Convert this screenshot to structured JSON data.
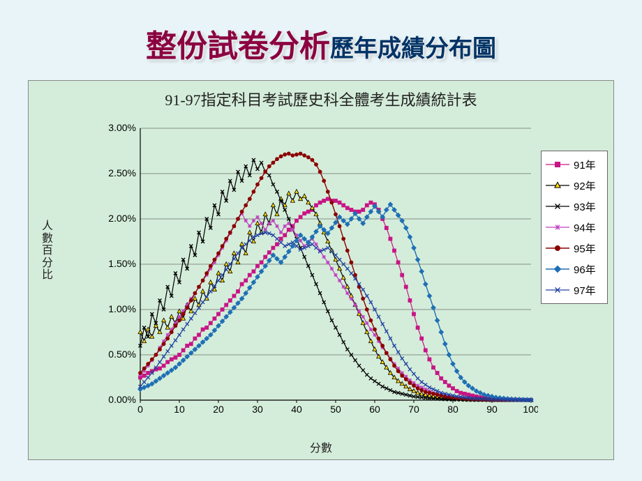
{
  "title": {
    "main": "整份試卷分析",
    "sub": "歷年成績分布圖"
  },
  "chart": {
    "type": "line",
    "title": "91-97指定科目考試歷史科全體考生成績統計表",
    "xlabel": "分數",
    "ylabel": "人數百分比",
    "background_color": "#d4edda",
    "page_background": "#e8f4f8",
    "grid_color": "#333333",
    "axis_color": "#000000",
    "title_fontsize": 22,
    "label_fontsize": 16,
    "tick_fontsize": 14,
    "xlim": [
      0,
      100
    ],
    "ylim": [
      0,
      3.0
    ],
    "xtick_step": 10,
    "ytick_step": 0.5,
    "ytick_format": "percent_2dec",
    "xticks": [
      0,
      10,
      20,
      30,
      40,
      50,
      60,
      70,
      80,
      90,
      100
    ],
    "yticks": [
      0,
      0.5,
      1.0,
      1.5,
      2.0,
      2.5,
      3.0
    ],
    "legend": {
      "position": "right",
      "bg": "#ffffff",
      "border": "#666666"
    },
    "series": [
      {
        "name": "91年",
        "color": "#c71585",
        "marker": "square",
        "line_width": 1.2,
        "marker_size": 5,
        "y": [
          0.25,
          0.27,
          0.3,
          0.32,
          0.34,
          0.35,
          0.38,
          0.42,
          0.45,
          0.47,
          0.5,
          0.55,
          0.6,
          0.62,
          0.68,
          0.72,
          0.78,
          0.8,
          0.85,
          0.9,
          0.95,
          1.0,
          1.05,
          1.1,
          1.15,
          1.2,
          1.28,
          1.32,
          1.38,
          1.42,
          1.48,
          1.52,
          1.58,
          1.63,
          1.68,
          1.72,
          1.78,
          1.82,
          1.88,
          1.92,
          1.98,
          2.02,
          2.06,
          2.08,
          2.1,
          2.15,
          2.18,
          2.2,
          2.22,
          2.2,
          2.2,
          2.18,
          2.15,
          2.12,
          2.1,
          2.08,
          2.08,
          2.1,
          2.15,
          2.18,
          2.16,
          2.1,
          2.0,
          1.9,
          1.78,
          1.65,
          1.52,
          1.38,
          1.25,
          1.1,
          0.95,
          0.8,
          0.68,
          0.55,
          0.45,
          0.36,
          0.3,
          0.24,
          0.2,
          0.16,
          0.13,
          0.1,
          0.08,
          0.07,
          0.06,
          0.05,
          0.04,
          0.03,
          0.025,
          0.02,
          0.018,
          0.015,
          0.012,
          0.01,
          0.008,
          0.006,
          0.005,
          0.004,
          0.003,
          0.002,
          0.002
        ]
      },
      {
        "name": "92年",
        "color": "#000000",
        "marker": "triangle",
        "fill": "#ffd800",
        "line_width": 1.2,
        "marker_size": 5,
        "y": [
          0.75,
          0.65,
          0.78,
          0.7,
          0.82,
          0.75,
          0.88,
          0.8,
          0.92,
          0.85,
          0.98,
          0.9,
          1.05,
          0.98,
          1.12,
          1.05,
          1.2,
          1.12,
          1.3,
          1.22,
          1.4,
          1.32,
          1.5,
          1.42,
          1.62,
          1.52,
          1.72,
          1.62,
          1.85,
          1.75,
          1.95,
          1.85,
          2.05,
          1.95,
          2.15,
          2.05,
          2.22,
          2.15,
          2.28,
          2.2,
          2.3,
          2.22,
          2.25,
          2.18,
          2.12,
          2.05,
          1.95,
          1.85,
          1.75,
          1.65,
          1.55,
          1.45,
          1.35,
          1.25,
          1.15,
          1.05,
          0.95,
          0.85,
          0.75,
          0.65,
          0.56,
          0.48,
          0.42,
          0.36,
          0.3,
          0.25,
          0.21,
          0.18,
          0.15,
          0.12,
          0.1,
          0.08,
          0.07,
          0.06,
          0.05,
          0.04,
          0.035,
          0.03,
          0.025,
          0.022,
          0.02,
          0.018,
          0.015,
          0.012,
          0.01,
          0.008,
          0.007,
          0.006,
          0.005,
          0.004,
          0.003,
          0.003,
          0.002,
          0.002,
          0.002,
          0.001,
          0.001,
          0.001,
          0.001,
          0.001,
          0.001
        ]
      },
      {
        "name": "93年",
        "color": "#000000",
        "marker": "x",
        "line_width": 1.2,
        "marker_size": 5,
        "y": [
          0.6,
          0.8,
          0.7,
          0.95,
          0.85,
          1.1,
          1.0,
          1.25,
          1.15,
          1.4,
          1.3,
          1.55,
          1.45,
          1.7,
          1.6,
          1.85,
          1.75,
          2.0,
          1.9,
          2.15,
          2.05,
          2.3,
          2.2,
          2.42,
          2.32,
          2.52,
          2.42,
          2.58,
          2.48,
          2.65,
          2.55,
          2.62,
          2.52,
          2.48,
          2.38,
          2.3,
          2.2,
          2.1,
          2.0,
          1.88,
          1.78,
          1.68,
          1.58,
          1.48,
          1.38,
          1.28,
          1.18,
          1.08,
          0.98,
          0.88,
          0.8,
          0.72,
          0.64,
          0.56,
          0.5,
          0.44,
          0.38,
          0.33,
          0.28,
          0.24,
          0.21,
          0.18,
          0.15,
          0.13,
          0.11,
          0.09,
          0.08,
          0.07,
          0.06,
          0.05,
          0.04,
          0.035,
          0.03,
          0.025,
          0.02,
          0.018,
          0.015,
          0.012,
          0.01,
          0.008,
          0.007,
          0.006,
          0.005,
          0.004,
          0.003,
          0.003,
          0.002,
          0.002,
          0.002,
          0.001,
          0.001,
          0.001,
          0.001,
          0.001,
          0.001,
          0.001,
          0.001,
          0.001,
          0.001,
          0.001,
          0.001
        ]
      },
      {
        "name": "94年",
        "color": "#c040c0",
        "marker": "star",
        "line_width": 1.2,
        "marker_size": 5,
        "y": [
          0.28,
          0.32,
          0.38,
          0.44,
          0.5,
          0.58,
          0.65,
          0.72,
          0.78,
          0.85,
          0.92,
          0.98,
          1.05,
          1.12,
          1.18,
          1.25,
          1.32,
          1.38,
          1.45,
          1.52,
          1.6,
          1.68,
          1.76,
          1.84,
          1.92,
          2.0,
          2.06,
          1.98,
          1.92,
          1.98,
          2.02,
          1.95,
          1.88,
          1.95,
          1.98,
          1.92,
          1.85,
          1.92,
          1.95,
          1.88,
          1.82,
          1.76,
          1.7,
          1.74,
          1.78,
          1.72,
          1.65,
          1.58,
          1.52,
          1.45,
          1.38,
          1.32,
          1.25,
          1.18,
          1.12,
          1.05,
          0.98,
          0.92,
          0.85,
          0.78,
          0.72,
          0.65,
          0.58,
          0.52,
          0.46,
          0.4,
          0.35,
          0.3,
          0.26,
          0.22,
          0.19,
          0.16,
          0.14,
          0.12,
          0.1,
          0.08,
          0.07,
          0.06,
          0.05,
          0.04,
          0.035,
          0.03,
          0.025,
          0.02,
          0.018,
          0.015,
          0.012,
          0.01,
          0.008,
          0.007,
          0.006,
          0.005,
          0.004,
          0.003,
          0.003,
          0.002,
          0.002,
          0.002,
          0.001,
          0.001,
          0.001
        ]
      },
      {
        "name": "95年",
        "color": "#8b0000",
        "marker": "circle",
        "line_width": 1.4,
        "marker_size": 5,
        "y": [
          0.3,
          0.35,
          0.4,
          0.45,
          0.5,
          0.56,
          0.62,
          0.68,
          0.75,
          0.82,
          0.88,
          0.95,
          1.02,
          1.1,
          1.18,
          1.25,
          1.32,
          1.4,
          1.48,
          1.55,
          1.62,
          1.7,
          1.78,
          1.85,
          1.92,
          2.0,
          2.08,
          2.15,
          2.22,
          2.3,
          2.38,
          2.45,
          2.52,
          2.58,
          2.62,
          2.66,
          2.69,
          2.71,
          2.72,
          2.7,
          2.71,
          2.72,
          2.7,
          2.68,
          2.65,
          2.6,
          2.52,
          2.42,
          2.3,
          2.18,
          2.05,
          1.92,
          1.78,
          1.65,
          1.52,
          1.38,
          1.25,
          1.12,
          1.0,
          0.88,
          0.78,
          0.68,
          0.6,
          0.52,
          0.45,
          0.38,
          0.32,
          0.27,
          0.23,
          0.19,
          0.16,
          0.13,
          0.11,
          0.09,
          0.08,
          0.07,
          0.06,
          0.05,
          0.04,
          0.035,
          0.03,
          0.025,
          0.02,
          0.018,
          0.015,
          0.012,
          0.01,
          0.008,
          0.007,
          0.006,
          0.005,
          0.004,
          0.003,
          0.003,
          0.002,
          0.002,
          0.002,
          0.001,
          0.001,
          0.001,
          0.001
        ]
      },
      {
        "name": "96年",
        "color": "#1f6fb4",
        "marker": "diamond",
        "line_width": 1.4,
        "marker_size": 5,
        "y": [
          0.12,
          0.14,
          0.16,
          0.18,
          0.21,
          0.24,
          0.27,
          0.3,
          0.33,
          0.36,
          0.4,
          0.44,
          0.48,
          0.52,
          0.56,
          0.6,
          0.64,
          0.68,
          0.72,
          0.77,
          0.82,
          0.87,
          0.92,
          0.97,
          1.02,
          1.07,
          1.12,
          1.18,
          1.24,
          1.3,
          1.36,
          1.42,
          1.48,
          1.54,
          1.6,
          1.56,
          1.52,
          1.58,
          1.64,
          1.7,
          1.76,
          1.82,
          1.78,
          1.74,
          1.8,
          1.86,
          1.92,
          1.88,
          1.84,
          1.9,
          1.96,
          2.02,
          1.98,
          1.94,
          2.0,
          2.06,
          2.0,
          1.95,
          2.02,
          2.08,
          2.14,
          2.08,
          2.02,
          2.1,
          2.16,
          2.1,
          2.04,
          1.98,
          1.9,
          1.8,
          1.68,
          1.55,
          1.42,
          1.28,
          1.15,
          1.02,
          0.88,
          0.75,
          0.62,
          0.5,
          0.4,
          0.32,
          0.25,
          0.2,
          0.16,
          0.13,
          0.1,
          0.08,
          0.06,
          0.05,
          0.04,
          0.03,
          0.025,
          0.02,
          0.015,
          0.012,
          0.01,
          0.008,
          0.006,
          0.005,
          0.004
        ]
      },
      {
        "name": "97年",
        "color": "#2040a0",
        "marker": "x",
        "line_width": 1.2,
        "marker_size": 5,
        "y": [
          0.15,
          0.2,
          0.25,
          0.3,
          0.36,
          0.42,
          0.48,
          0.54,
          0.6,
          0.66,
          0.72,
          0.78,
          0.84,
          0.9,
          0.96,
          1.02,
          1.08,
          1.14,
          1.2,
          1.26,
          1.32,
          1.38,
          1.44,
          1.5,
          1.56,
          1.62,
          1.68,
          1.72,
          1.76,
          1.8,
          1.82,
          1.84,
          1.85,
          1.84,
          1.82,
          1.78,
          1.74,
          1.7,
          1.72,
          1.74,
          1.7,
          1.66,
          1.68,
          1.7,
          1.72,
          1.68,
          1.64,
          1.66,
          1.68,
          1.64,
          1.6,
          1.55,
          1.5,
          1.45,
          1.4,
          1.34,
          1.28,
          1.22,
          1.15,
          1.08,
          1.0,
          0.92,
          0.84,
          0.76,
          0.68,
          0.6,
          0.53,
          0.46,
          0.4,
          0.34,
          0.29,
          0.24,
          0.2,
          0.17,
          0.14,
          0.12,
          0.1,
          0.08,
          0.07,
          0.06,
          0.05,
          0.04,
          0.035,
          0.03,
          0.025,
          0.02,
          0.018,
          0.015,
          0.012,
          0.01,
          0.008,
          0.007,
          0.006,
          0.005,
          0.004,
          0.003,
          0.003,
          0.002,
          0.002,
          0.001,
          0.001
        ]
      }
    ]
  }
}
